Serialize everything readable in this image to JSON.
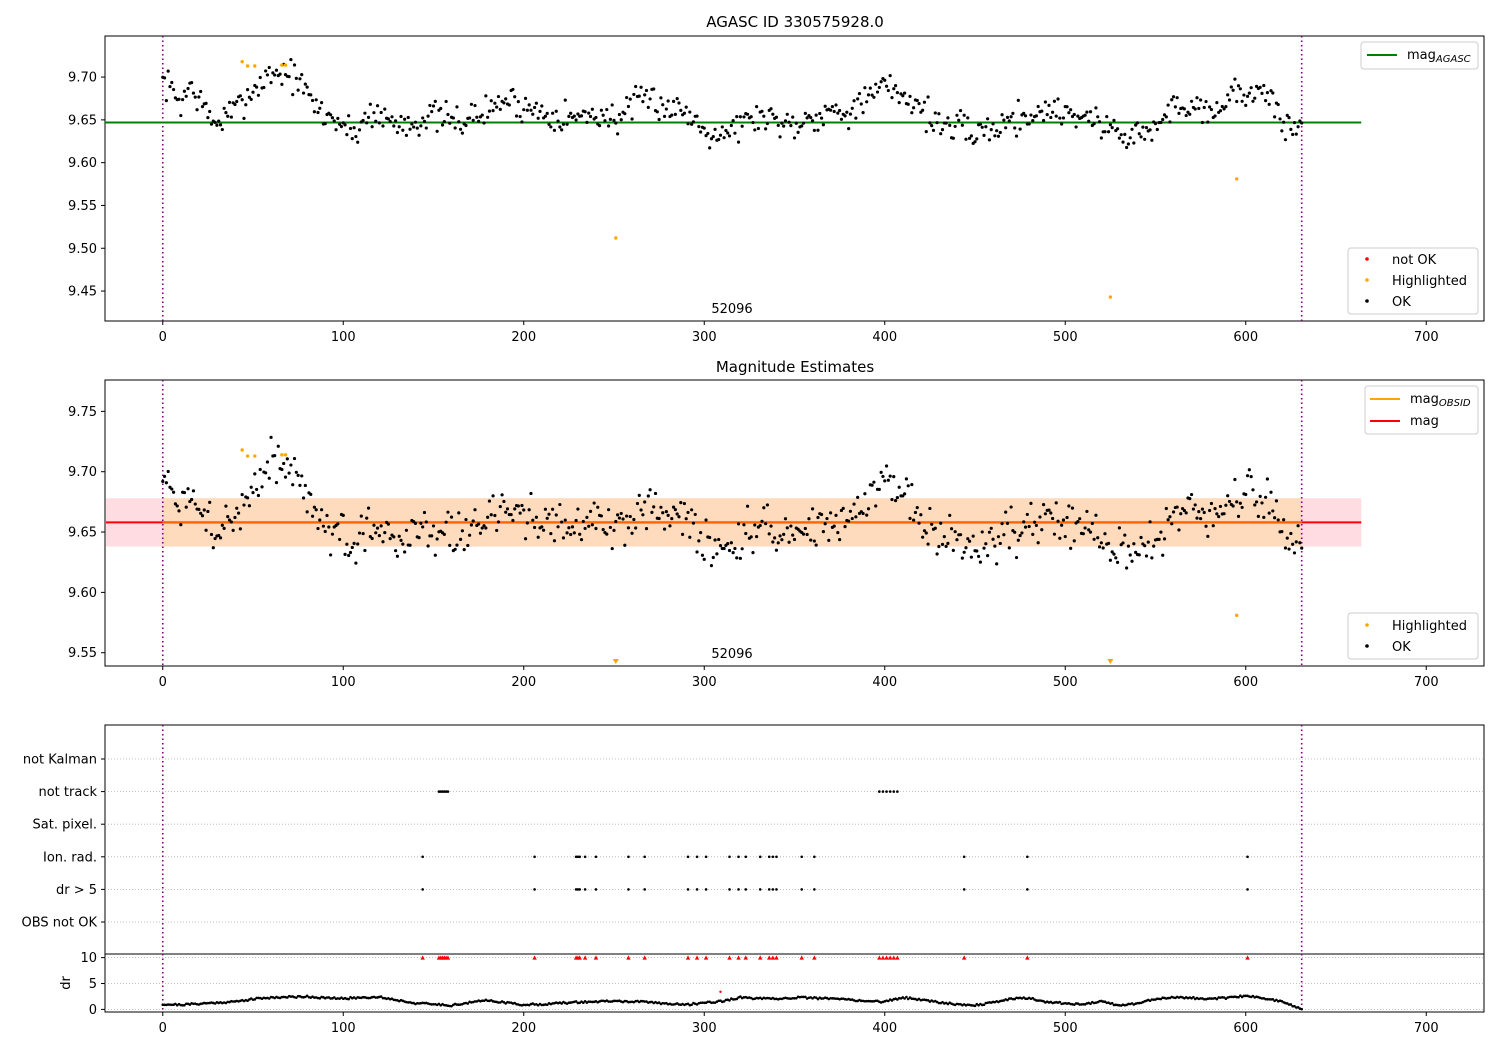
{
  "chart_data": [
    {
      "type": "scatter",
      "title": "AGASC ID 330575928.0",
      "annotation": "52096",
      "xlim": [
        -32,
        732
      ],
      "ylim": [
        9.415,
        9.748
      ],
      "x_ticks": [
        0,
        100,
        200,
        300,
        400,
        500,
        600,
        700
      ],
      "y_ticks": [
        "9.45",
        "9.50",
        "9.55",
        "9.60",
        "9.65",
        "9.70"
      ],
      "obs_boundaries": [
        0,
        631
      ],
      "agasc_mag": 9.647,
      "colors": {
        "ok": "#000000",
        "highlighted": "#ffa500",
        "not_ok": "#ff0000",
        "agasc_line": "#008000",
        "boundary": "#800080"
      },
      "legend_top": [
        {
          "label": "mag",
          "sub": "AGASC",
          "color": "#008000"
        }
      ],
      "legend_bottom": [
        {
          "label": "not OK",
          "color": "#ff0000"
        },
        {
          "label": "Highlighted",
          "color": "#ffa500"
        },
        {
          "label": "OK",
          "color": "#000000"
        }
      ],
      "legend_placement": [
        "upper right",
        "lower right"
      ],
      "ok_anchors": [
        [
          0,
          9.695
        ],
        [
          5,
          9.685
        ],
        [
          10,
          9.67
        ],
        [
          15,
          9.69
        ],
        [
          20,
          9.675
        ],
        [
          25,
          9.655
        ],
        [
          30,
          9.645
        ],
        [
          35,
          9.655
        ],
        [
          40,
          9.66
        ],
        [
          45,
          9.675
        ],
        [
          50,
          9.685
        ],
        [
          55,
          9.695
        ],
        [
          60,
          9.705
        ],
        [
          65,
          9.705
        ],
        [
          70,
          9.705
        ],
        [
          75,
          9.695
        ],
        [
          80,
          9.68
        ],
        [
          85,
          9.665
        ],
        [
          90,
          9.655
        ],
        [
          95,
          9.652
        ],
        [
          100,
          9.645
        ],
        [
          105,
          9.632
        ],
        [
          110,
          9.645
        ],
        [
          115,
          9.66
        ],
        [
          120,
          9.655
        ],
        [
          130,
          9.645
        ],
        [
          140,
          9.648
        ],
        [
          150,
          9.655
        ],
        [
          160,
          9.648
        ],
        [
          170,
          9.652
        ],
        [
          180,
          9.66
        ],
        [
          190,
          9.675
        ],
        [
          200,
          9.665
        ],
        [
          210,
          9.66
        ],
        [
          220,
          9.655
        ],
        [
          230,
          9.652
        ],
        [
          240,
          9.658
        ],
        [
          250,
          9.65
        ],
        [
          260,
          9.665
        ],
        [
          270,
          9.675
        ],
        [
          280,
          9.665
        ],
        [
          290,
          9.66
        ],
        [
          300,
          9.64
        ],
        [
          310,
          9.635
        ],
        [
          320,
          9.645
        ],
        [
          330,
          9.655
        ],
        [
          340,
          9.65
        ],
        [
          350,
          9.645
        ],
        [
          360,
          9.655
        ],
        [
          370,
          9.66
        ],
        [
          380,
          9.662
        ],
        [
          390,
          9.672
        ],
        [
          400,
          9.69
        ],
        [
          410,
          9.68
        ],
        [
          420,
          9.665
        ],
        [
          430,
          9.645
        ],
        [
          440,
          9.64
        ],
        [
          450,
          9.635
        ],
        [
          460,
          9.64
        ],
        [
          470,
          9.65
        ],
        [
          480,
          9.655
        ],
        [
          490,
          9.662
        ],
        [
          500,
          9.66
        ],
        [
          510,
          9.655
        ],
        [
          520,
          9.645
        ],
        [
          530,
          9.635
        ],
        [
          540,
          9.632
        ],
        [
          550,
          9.64
        ],
        [
          560,
          9.665
        ],
        [
          570,
          9.67
        ],
        [
          580,
          9.66
        ],
        [
          590,
          9.675
        ],
        [
          600,
          9.685
        ],
        [
          610,
          9.68
        ],
        [
          615,
          9.665
        ],
        [
          620,
          9.65
        ],
        [
          625,
          9.64
        ],
        [
          631,
          9.645
        ]
      ],
      "ok_scatter": 0.013,
      "ok_seed": 7,
      "highlighted_points": [
        [
          44,
          9.718
        ],
        [
          47,
          9.713
        ],
        [
          51,
          9.713
        ],
        [
          66,
          9.714
        ],
        [
          68,
          9.714
        ],
        [
          251,
          9.512
        ],
        [
          525,
          9.443
        ],
        [
          595,
          9.581
        ]
      ]
    },
    {
      "type": "scatter",
      "title": "Magnitude Estimates",
      "annotation": "52096",
      "xlim": [
        -32,
        732
      ],
      "ylim": [
        9.539,
        9.776
      ],
      "x_ticks": [
        0,
        100,
        200,
        300,
        400,
        500,
        600,
        700
      ],
      "y_ticks": [
        "9.55",
        "9.60",
        "9.65",
        "9.70",
        "9.75"
      ],
      "obs_boundaries": [
        0,
        631
      ],
      "mag": 9.658,
      "mag_obsid": 9.658,
      "band_outer": [
        9.638,
        9.678
      ],
      "band_inner": [
        9.638,
        9.678
      ],
      "band_x": [
        -32,
        664
      ],
      "colors": {
        "ok": "#000000",
        "highlighted": "#ffa500",
        "mag_line": "#ff0000",
        "mag_obsid_line": "#ffa500",
        "band_outer": "#ffc0cb",
        "band_inner": "#ffdab9",
        "boundary": "#800080"
      },
      "legend_top": [
        {
          "label": "mag",
          "sub": "OBSID",
          "color": "#ffa500"
        },
        {
          "label": "mag",
          "sub": "",
          "color": "#ff0000"
        }
      ],
      "legend_bottom": [
        {
          "label": "Highlighted",
          "color": "#ffa500"
        },
        {
          "label": "OK",
          "color": "#000000"
        }
      ],
      "legend_placement": [
        "upper right",
        "lower right"
      ],
      "highlighted_points": [
        [
          44,
          9.718
        ],
        [
          47,
          9.713
        ],
        [
          51,
          9.713
        ],
        [
          66,
          9.714
        ],
        [
          68,
          9.714
        ],
        [
          595,
          9.581
        ]
      ],
      "below_range_markers": [
        251,
        525
      ]
    },
    {
      "type": "scatter",
      "xlim": [
        -32,
        732
      ],
      "categories": [
        "not Kalman",
        "not track",
        "Sat. pixel.",
        "Ion. rad.",
        "dr > 5",
        "OBS not OK"
      ],
      "flag_points": {
        "not track": [
          153,
          154,
          155,
          156,
          157,
          158,
          397,
          399,
          401,
          403,
          405,
          407
        ],
        "Ion. rad.": [
          144,
          206,
          229,
          230,
          231,
          234,
          240,
          258,
          267,
          291,
          296,
          301,
          314,
          319,
          323,
          331,
          336,
          338,
          340,
          354,
          361,
          444,
          479,
          601
        ],
        "dr > 5": [
          144,
          206,
          229,
          230,
          231,
          234,
          240,
          258,
          267,
          291,
          296,
          301,
          314,
          319,
          323,
          331,
          336,
          338,
          340,
          354,
          361,
          444,
          479,
          601
        ]
      },
      "obs_boundaries": [
        0,
        631
      ],
      "colors": {
        "point": "#000000",
        "grid": "#b0b0b0",
        "boundary": "#800080"
      }
    },
    {
      "type": "scatter",
      "ylabel": "dr",
      "xlim": [
        -32,
        732
      ],
      "ylim": [
        -0.5,
        10.7
      ],
      "x_ticks": [
        0,
        100,
        200,
        300,
        400,
        500,
        600,
        700
      ],
      "y_ticks": [
        "0",
        "5",
        "10"
      ],
      "obs_boundaries": [
        0,
        631
      ],
      "outlier_markers_at": 10,
      "outlier_x": [
        144,
        153,
        154,
        155,
        156,
        157,
        158,
        206,
        229,
        230,
        231,
        234,
        240,
        258,
        267,
        291,
        296,
        301,
        314,
        319,
        323,
        331,
        336,
        338,
        340,
        354,
        361,
        397,
        399,
        401,
        403,
        405,
        407,
        444,
        479,
        601
      ],
      "dr_anchors": [
        [
          0,
          1.0
        ],
        [
          10,
          0.9
        ],
        [
          20,
          1.1
        ],
        [
          30,
          1.3
        ],
        [
          40,
          1.5
        ],
        [
          50,
          2.0
        ],
        [
          60,
          2.3
        ],
        [
          70,
          2.4
        ],
        [
          80,
          2.5
        ],
        [
          90,
          2.2
        ],
        [
          100,
          2.1
        ],
        [
          110,
          2.3
        ],
        [
          120,
          2.4
        ],
        [
          130,
          1.8
        ],
        [
          140,
          1.2
        ],
        [
          150,
          1.0
        ],
        [
          160,
          0.8
        ],
        [
          170,
          1.3
        ],
        [
          180,
          1.8
        ],
        [
          190,
          1.3
        ],
        [
          200,
          0.9
        ],
        [
          210,
          1.0
        ],
        [
          220,
          1.2
        ],
        [
          230,
          1.4
        ],
        [
          240,
          1.5
        ],
        [
          250,
          1.6
        ],
        [
          260,
          1.5
        ],
        [
          270,
          1.4
        ],
        [
          280,
          1.1
        ],
        [
          290,
          0.9
        ],
        [
          300,
          1.3
        ],
        [
          310,
          1.6
        ],
        [
          320,
          2.3
        ],
        [
          330,
          2.1
        ],
        [
          340,
          2.0
        ],
        [
          350,
          2.3
        ],
        [
          360,
          2.2
        ],
        [
          370,
          2.1
        ],
        [
          380,
          1.9
        ],
        [
          390,
          1.6
        ],
        [
          400,
          1.5
        ],
        [
          410,
          2.3
        ],
        [
          420,
          1.9
        ],
        [
          430,
          1.4
        ],
        [
          440,
          1.0
        ],
        [
          450,
          0.8
        ],
        [
          460,
          1.3
        ],
        [
          470,
          2.1
        ],
        [
          480,
          2.2
        ],
        [
          490,
          1.4
        ],
        [
          500,
          1.2
        ],
        [
          510,
          0.9
        ],
        [
          520,
          1.7
        ],
        [
          530,
          0.7
        ],
        [
          540,
          1.2
        ],
        [
          550,
          2.0
        ],
        [
          560,
          2.4
        ],
        [
          570,
          2.2
        ],
        [
          580,
          2.1
        ],
        [
          590,
          2.2
        ],
        [
          600,
          2.6
        ],
        [
          610,
          2.2
        ],
        [
          620,
          1.5
        ],
        [
          625,
          0.8
        ],
        [
          631,
          0.2
        ]
      ],
      "dr_outliers": [
        [
          309,
          3.4
        ]
      ],
      "colors": {
        "point": "#000000",
        "outlier": "#ff0000",
        "grid": "#b0b0b0",
        "boundary": "#800080"
      }
    }
  ]
}
